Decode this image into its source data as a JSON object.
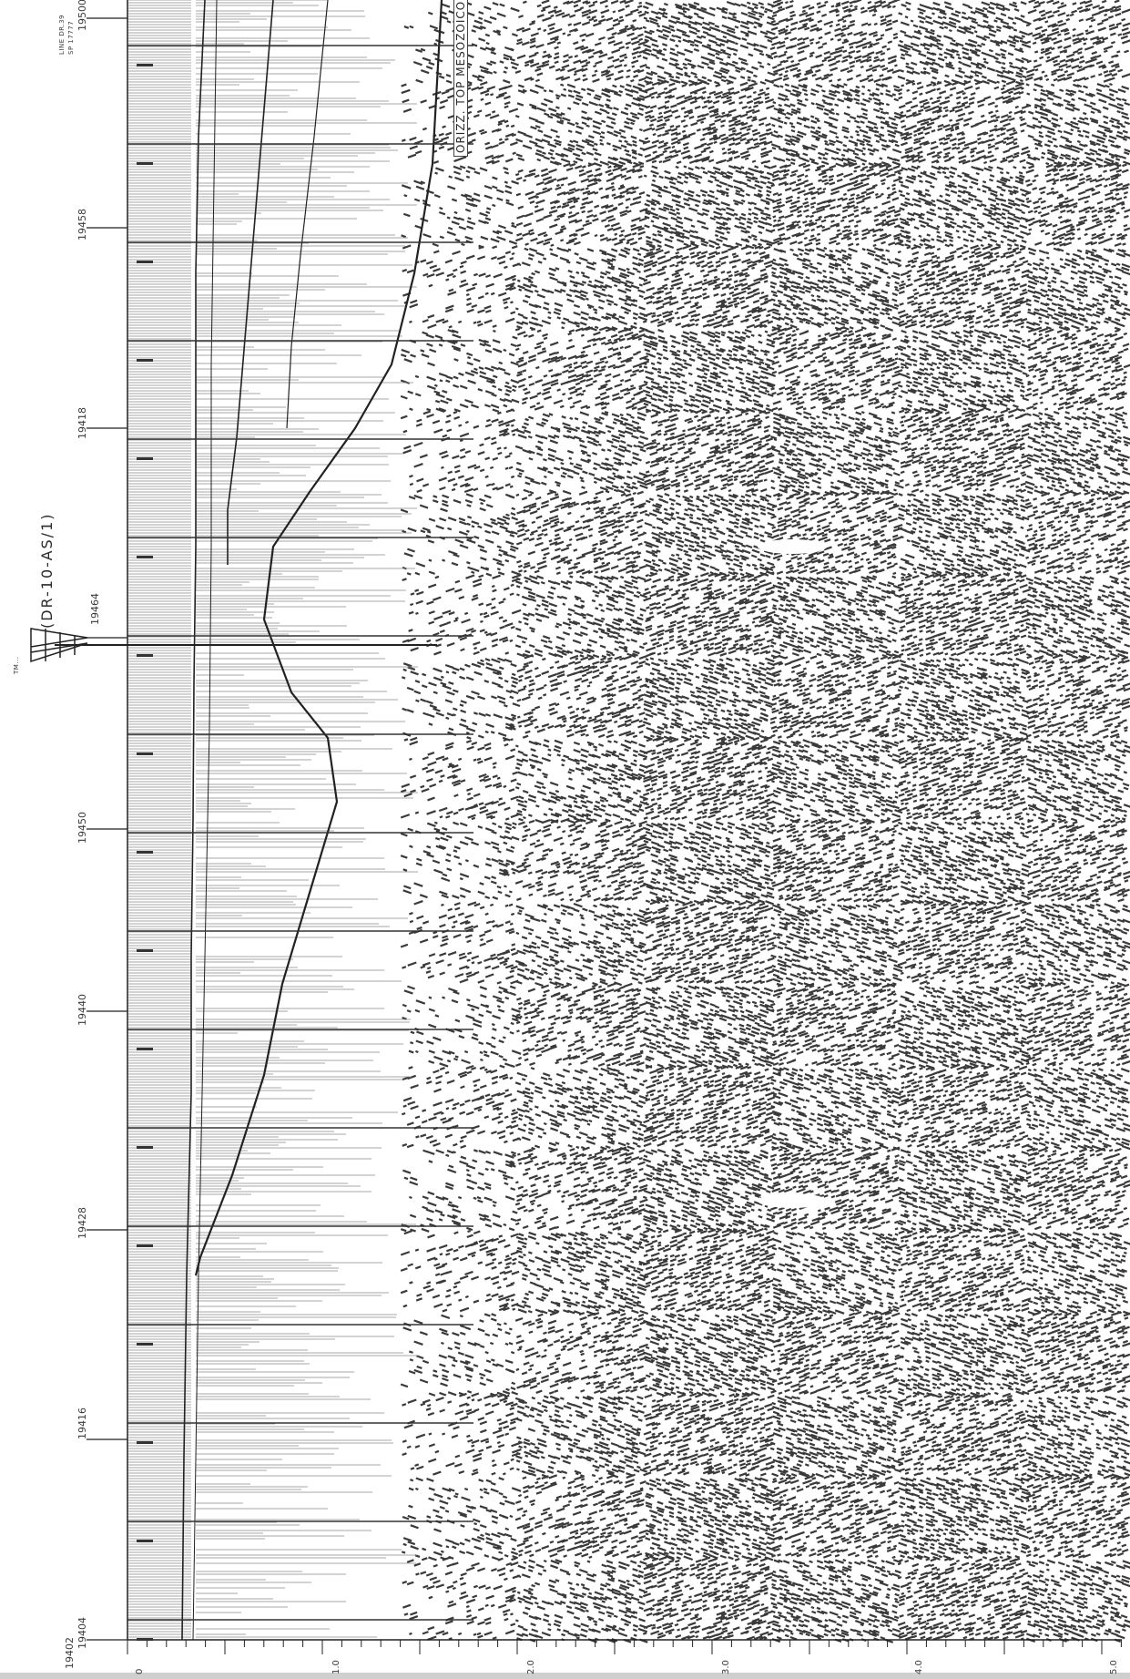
{
  "line_label": {
    "line": "LINE DR.39",
    "sp": "SP 17777"
  },
  "well": {
    "name": "(DR-10-AS/1)",
    "prefix": "TM..."
  },
  "horizon": {
    "label": "ORIZZ. TOP MESOZOICO"
  },
  "shotpoints": [
    {
      "value": "19500"
    },
    {
      "value": "19458"
    },
    {
      "value": "19418"
    },
    {
      "value": "19464"
    },
    {
      "value": "19450"
    },
    {
      "value": "19440"
    },
    {
      "value": "19428"
    },
    {
      "value": "19416"
    },
    {
      "value": "19404"
    },
    {
      "value": "19402"
    }
  ],
  "time_axis": {
    "ticks": [
      "0",
      "1.0",
      "2.0",
      "3.0",
      "4.0",
      "5.0"
    ]
  },
  "colors": {
    "ink": "#3a3a3a",
    "paper": "#ffffff"
  }
}
